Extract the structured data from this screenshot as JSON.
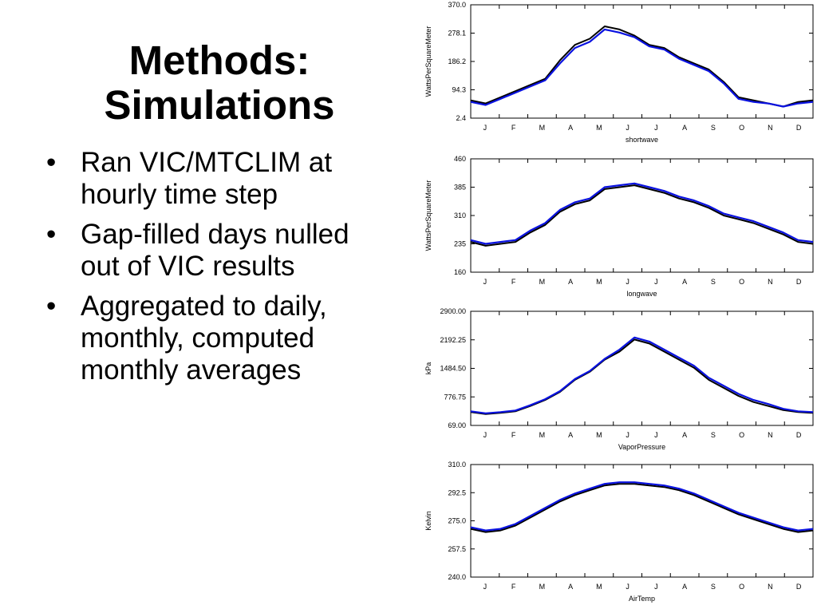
{
  "slide": {
    "title_lines": [
      "Methods:",
      "Simulations"
    ],
    "bullets": [
      "Ran VIC/MTCLIM at hourly time step",
      "Gap-filled days nulled out of VIC results",
      "Aggregated to daily, monthly, computed monthly averages"
    ],
    "bullet_glyph": "•"
  },
  "colors": {
    "observed": "#000000",
    "simulated": "#0a12e0",
    "axis": "#000000"
  },
  "chart_data": [
    {
      "type": "line",
      "xlabel": "shortwave",
      "ylabel": "WattsPerSquareMeter",
      "ylim": [
        2.4,
        370.0
      ],
      "yticks": [
        "370.0",
        "278.1",
        "186.2",
        "94.3",
        "2.4"
      ],
      "months": [
        "J",
        "F",
        "M",
        "A",
        "M",
        "J",
        "J",
        "A",
        "S",
        "O",
        "N",
        "D"
      ],
      "series": [
        {
          "values": [
            60,
            50,
            70,
            90,
            110,
            130,
            190,
            240,
            260,
            300,
            290,
            270,
            240,
            230,
            200,
            180,
            160,
            120,
            70,
            60,
            50,
            40,
            55,
            60
          ]
        },
        {
          "values": [
            55,
            45,
            65,
            85,
            105,
            125,
            180,
            230,
            250,
            290,
            280,
            265,
            235,
            225,
            195,
            175,
            155,
            115,
            65,
            55,
            50,
            40,
            50,
            55
          ]
        }
      ]
    },
    {
      "type": "line",
      "xlabel": "longwave",
      "ylabel": "WattsPerSquareMeter",
      "ylim": [
        160,
        460
      ],
      "yticks": [
        "460",
        "385",
        "310",
        "235",
        "160"
      ],
      "months": [
        "J",
        "F",
        "M",
        "A",
        "M",
        "J",
        "J",
        "A",
        "S",
        "O",
        "N",
        "D"
      ],
      "series": [
        {
          "values": [
            240,
            230,
            235,
            240,
            265,
            285,
            320,
            340,
            350,
            380,
            385,
            390,
            380,
            370,
            355,
            345,
            330,
            310,
            300,
            290,
            275,
            260,
            240,
            235
          ]
        },
        {
          "values": [
            245,
            235,
            240,
            245,
            270,
            290,
            325,
            345,
            355,
            385,
            390,
            395,
            385,
            375,
            360,
            350,
            335,
            315,
            305,
            295,
            280,
            265,
            245,
            240
          ]
        }
      ]
    },
    {
      "type": "line",
      "xlabel": "VaporPressure",
      "ylabel": "kPa",
      "ylim": [
        69.0,
        2900.0
      ],
      "yticks": [
        "2900.00",
        "2192.25",
        "1484.50",
        "776.75",
        "69.00"
      ],
      "months": [
        "J",
        "F",
        "M",
        "A",
        "M",
        "J",
        "J",
        "A",
        "S",
        "O",
        "N",
        "D"
      ],
      "series": [
        {
          "values": [
            400,
            350,
            380,
            420,
            550,
            700,
            900,
            1200,
            1400,
            1700,
            1900,
            2200,
            2100,
            1900,
            1700,
            1500,
            1200,
            1000,
            800,
            650,
            550,
            450,
            400,
            380
          ]
        },
        {
          "values": [
            420,
            370,
            400,
            440,
            570,
            720,
            920,
            1220,
            1420,
            1720,
            1950,
            2250,
            2150,
            1950,
            1750,
            1550,
            1250,
            1050,
            850,
            700,
            600,
            480,
            420,
            400
          ]
        }
      ]
    },
    {
      "type": "line",
      "xlabel": "AirTemp",
      "ylabel": "Kelvin",
      "ylim": [
        240.0,
        310.0
      ],
      "yticks": [
        "310.0",
        "292.5",
        "275.0",
        "257.5",
        "240.0"
      ],
      "months": [
        "J",
        "F",
        "M",
        "A",
        "M",
        "J",
        "J",
        "A",
        "S",
        "O",
        "N",
        "D"
      ],
      "series": [
        {
          "values": [
            270,
            268,
            269,
            272,
            277,
            282,
            287,
            291,
            294,
            297,
            298,
            298,
            297,
            296,
            294,
            291,
            287,
            283,
            279,
            276,
            273,
            270,
            268,
            269
          ]
        },
        {
          "values": [
            271,
            269,
            270,
            273,
            278,
            283,
            288,
            292,
            295,
            298,
            299,
            299,
            298,
            297,
            295,
            292,
            288,
            284,
            280,
            277,
            274,
            271,
            269,
            270
          ]
        }
      ]
    }
  ]
}
